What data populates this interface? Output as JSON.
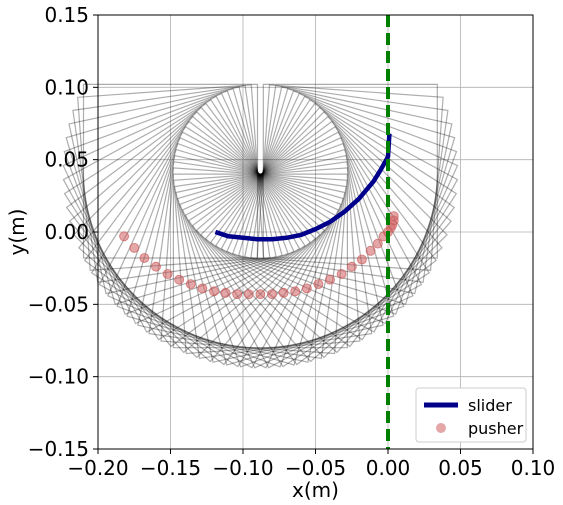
{
  "chart_data": {
    "type": "line",
    "xlabel": "x(m)",
    "ylabel": "y(m)",
    "xlim": [
      -0.2,
      0.1
    ],
    "ylim": [
      -0.15,
      0.15
    ],
    "x_ticks": [
      -0.2,
      -0.15,
      -0.1,
      -0.05,
      0.0,
      0.05,
      0.1
    ],
    "y_ticks": [
      -0.15,
      -0.1,
      -0.05,
      0.0,
      0.05,
      0.1,
      0.15
    ],
    "x_tick_labels": [
      "−0.20",
      "−0.15",
      "−0.10",
      "−0.05",
      "0.00",
      "0.05",
      "0.10"
    ],
    "y_tick_labels": [
      "−0.15",
      "−0.10",
      "−0.05",
      "0.00",
      "0.05",
      "0.10",
      "0.15"
    ],
    "grid": true,
    "legend_position": "bottom-right",
    "colors": {
      "slider": "#00008b",
      "pusher": "#cd5c5c",
      "vertical_line": "#008000",
      "footprint": "#000000"
    },
    "series": [
      {
        "name": "slider",
        "type": "line",
        "x": [
          -0.119,
          -0.11,
          -0.1,
          -0.09,
          -0.08,
          -0.07,
          -0.06,
          -0.05,
          -0.04,
          -0.03,
          -0.02,
          -0.01,
          -0.005,
          0.0,
          0.001
        ],
        "y": [
          0.0,
          -0.003,
          -0.004,
          -0.005,
          -0.005,
          -0.004,
          -0.002,
          0.002,
          0.007,
          0.014,
          0.023,
          0.035,
          0.043,
          0.052,
          0.068
        ]
      },
      {
        "name": "pusher",
        "type": "scatter",
        "x": [
          -0.182,
          -0.175,
          -0.168,
          -0.16,
          -0.152,
          -0.144,
          -0.136,
          -0.128,
          -0.12,
          -0.112,
          -0.104,
          -0.096,
          -0.088,
          -0.08,
          -0.072,
          -0.064,
          -0.056,
          -0.048,
          -0.04,
          -0.032,
          -0.025,
          -0.018,
          -0.012,
          -0.007,
          -0.003,
          0.0,
          0.002,
          0.003,
          0.004,
          0.004
        ],
        "y": [
          -0.003,
          -0.011,
          -0.018,
          -0.024,
          -0.029,
          -0.033,
          -0.036,
          -0.039,
          -0.041,
          -0.042,
          -0.043,
          -0.043,
          -0.043,
          -0.043,
          -0.042,
          -0.041,
          -0.039,
          -0.036,
          -0.033,
          -0.029,
          -0.024,
          -0.019,
          -0.013,
          -0.008,
          -0.003,
          0.0,
          0.003,
          0.005,
          0.008,
          0.011
        ]
      },
      {
        "name": "",
        "type": "vline",
        "x": [
          0.0,
          0.0
        ],
        "y": [
          -0.15,
          0.15
        ]
      }
    ],
    "footprints": {
      "count": 45,
      "arc_center_x": -0.088,
      "arc_center_y": 0.048,
      "arc_radius": 0.062,
      "start_angle_deg": 180,
      "end_angle_deg": 360,
      "box_width": 0.12,
      "box_height": 0.12
    }
  }
}
